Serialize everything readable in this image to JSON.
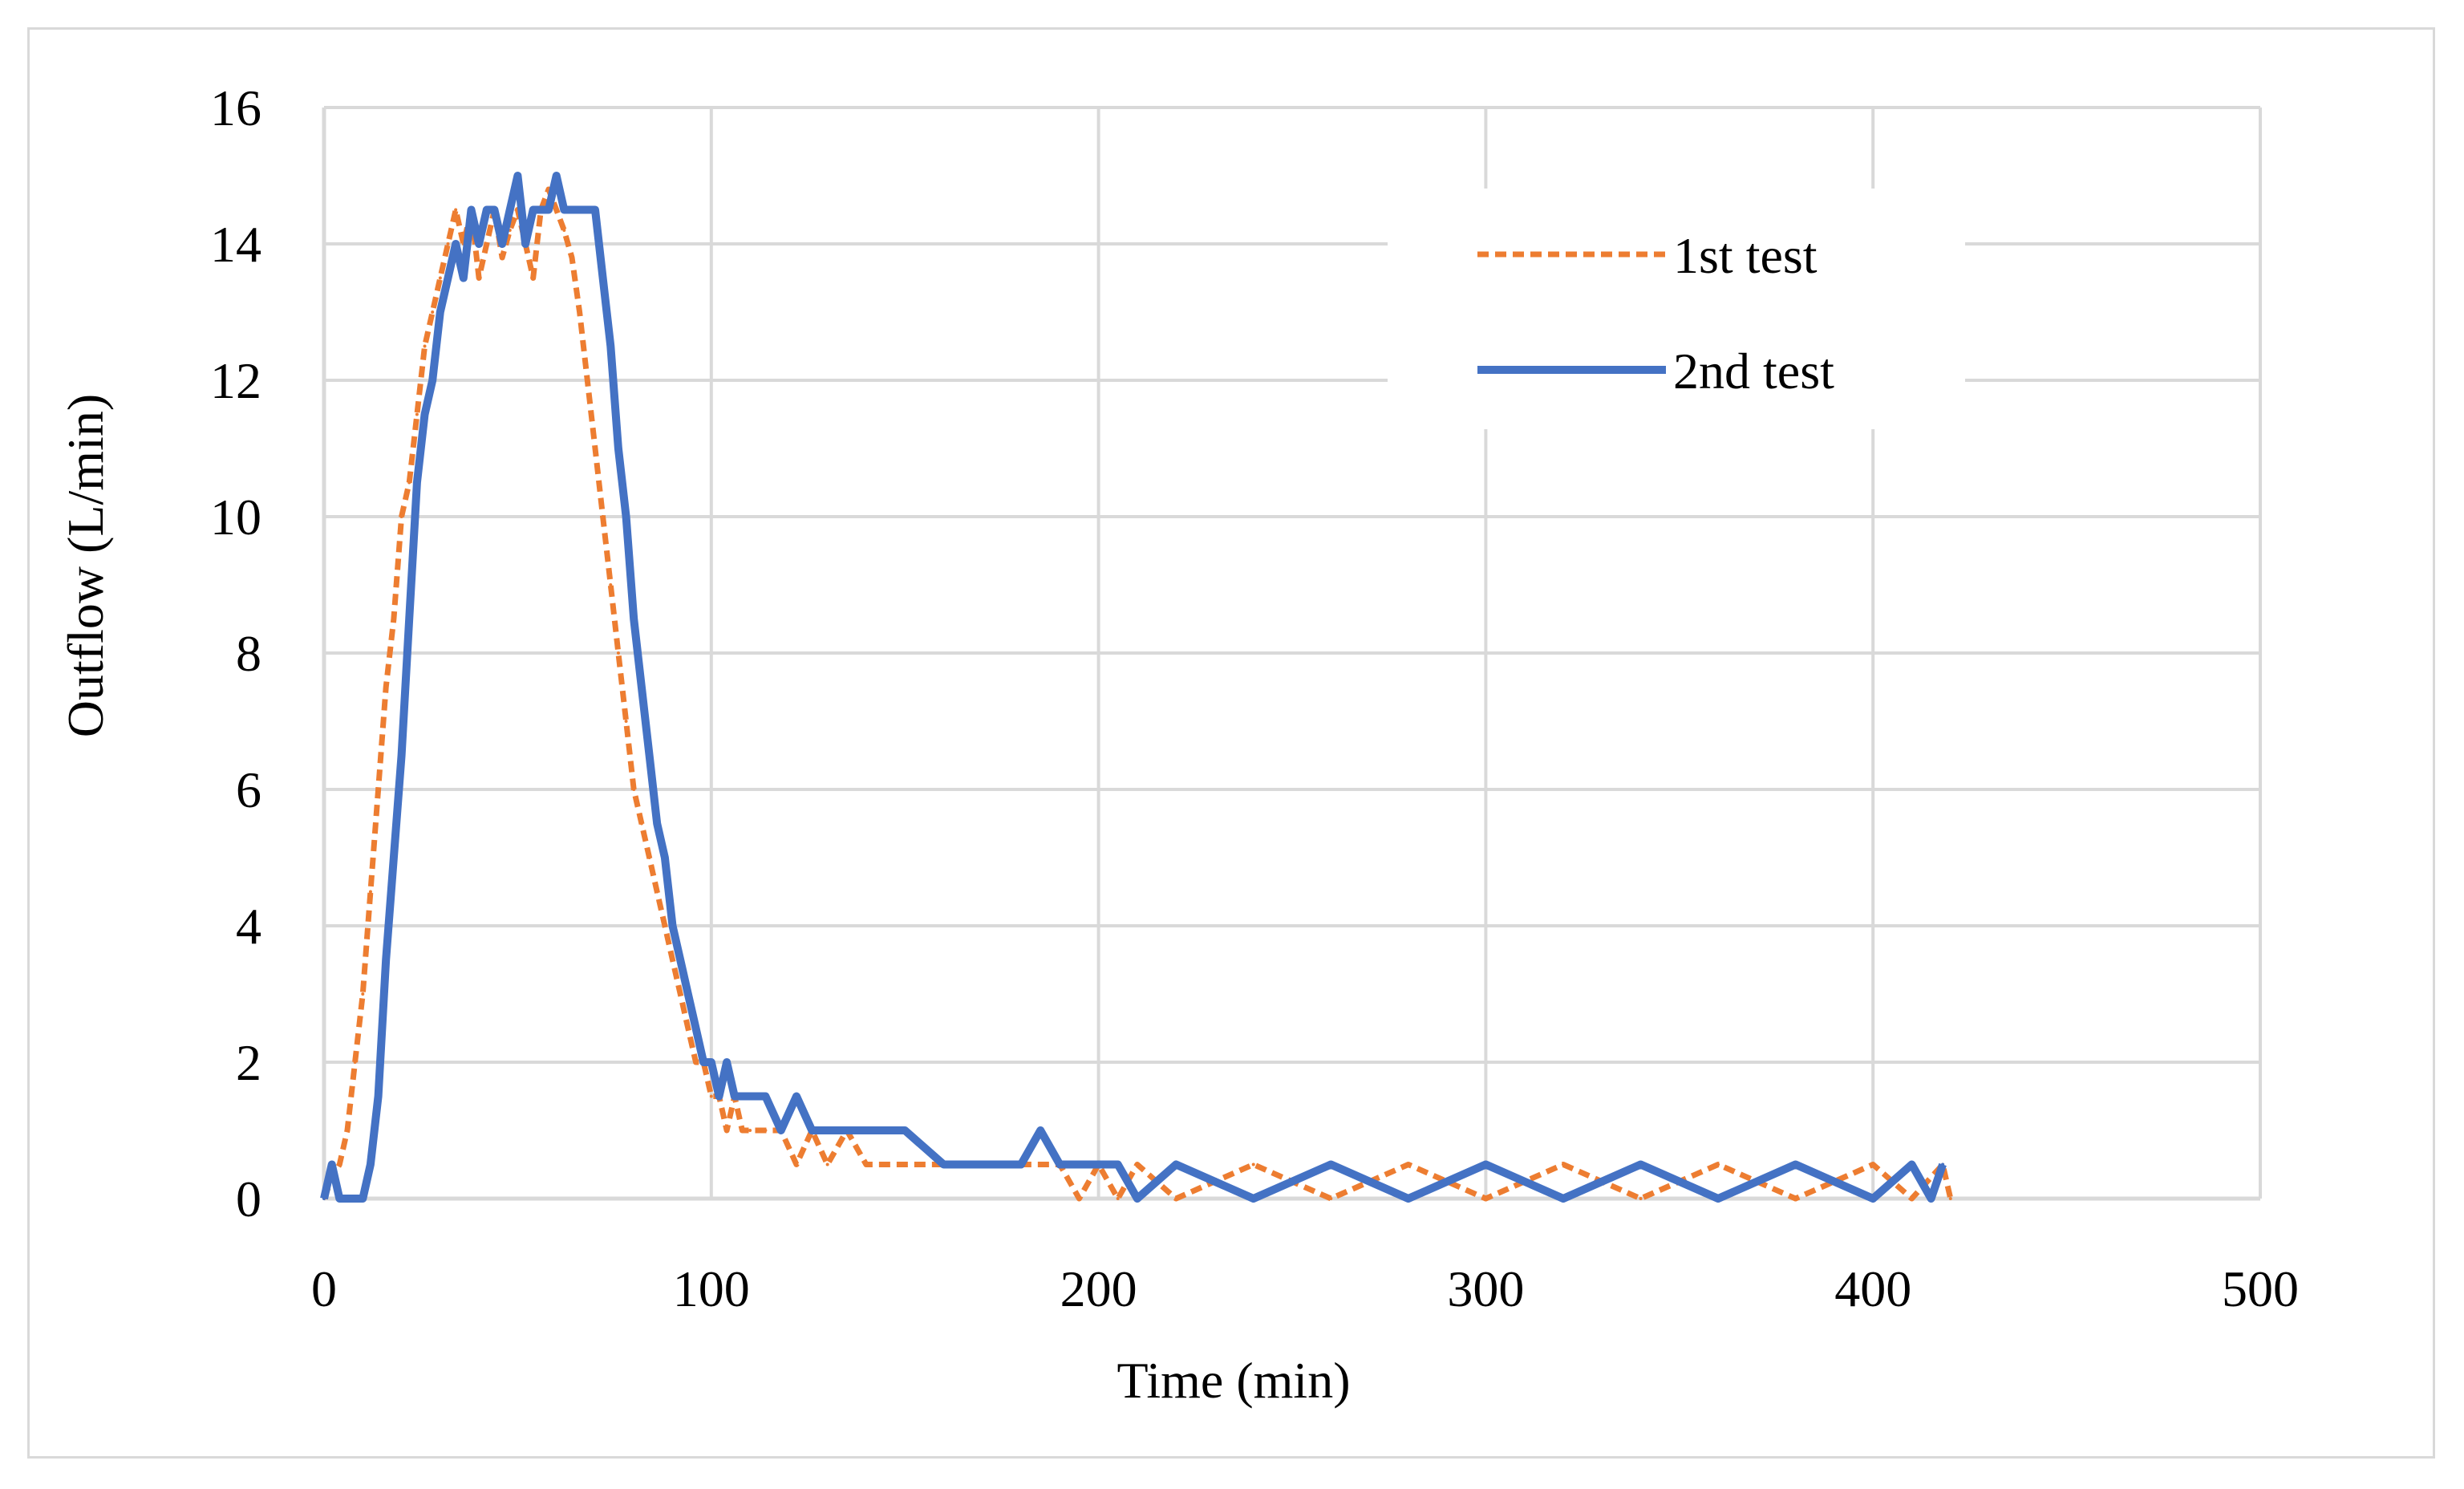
{
  "chart_data": {
    "type": "line",
    "title": "",
    "xlabel": "Time (min)",
    "ylabel": "Outflow (L/min)",
    "xlim": [
      0,
      500
    ],
    "ylim": [
      0,
      16
    ],
    "xticks": [
      0,
      100,
      200,
      300,
      400,
      500
    ],
    "yticks": [
      0,
      2,
      4,
      6,
      8,
      10,
      12,
      14,
      16
    ],
    "grid": true,
    "legend_position": "top-right",
    "series": [
      {
        "name": "1st test",
        "color": "#ED7D31",
        "style": "dashed",
        "x": [
          0,
          2,
          4,
          6,
          8,
          10,
          12,
          14,
          16,
          18,
          20,
          22,
          24,
          26,
          28,
          30,
          32,
          34,
          36,
          38,
          40,
          42,
          44,
          46,
          48,
          50,
          52,
          54,
          56,
          58,
          60,
          62,
          64,
          66,
          68,
          70,
          72,
          74,
          76,
          78,
          80,
          82,
          84,
          86,
          88,
          90,
          92,
          94,
          96,
          98,
          100,
          102,
          104,
          106,
          108,
          110,
          114,
          118,
          122,
          126,
          130,
          135,
          140,
          150,
          160,
          170,
          180,
          190,
          195,
          200,
          205,
          210,
          220,
          240,
          260,
          280,
          300,
          320,
          340,
          360,
          380,
          400,
          410,
          418,
          420
        ],
        "y": [
          0,
          0.3,
          0.5,
          1.0,
          2.0,
          3.0,
          4.5,
          6.0,
          7.5,
          8.5,
          10.0,
          10.5,
          11.5,
          12.5,
          13.0,
          13.5,
          14.0,
          14.5,
          14.0,
          14.5,
          13.5,
          14.0,
          14.5,
          13.8,
          14.2,
          14.5,
          14.0,
          13.5,
          14.5,
          14.8,
          14.5,
          14.2,
          13.8,
          13.0,
          12.0,
          11.0,
          10.0,
          9.0,
          8.0,
          7.0,
          6.0,
          5.5,
          5.0,
          4.5,
          4.0,
          3.5,
          3.0,
          2.5,
          2.0,
          2.0,
          1.5,
          1.5,
          1.0,
          1.5,
          1.0,
          1.0,
          1.0,
          1.0,
          0.5,
          1.0,
          0.5,
          1.0,
          0.5,
          0.5,
          0.5,
          0.5,
          0.5,
          0.5,
          0,
          0.5,
          0,
          0.5,
          0,
          0.5,
          0,
          0.5,
          0,
          0.5,
          0,
          0.5,
          0,
          0.5,
          0,
          0.5,
          0
        ]
      },
      {
        "name": "2nd test",
        "color": "#4472C4",
        "style": "solid",
        "x": [
          0,
          2,
          4,
          10,
          12,
          14,
          16,
          18,
          20,
          22,
          24,
          26,
          28,
          30,
          32,
          34,
          36,
          38,
          40,
          42,
          44,
          46,
          48,
          50,
          52,
          54,
          56,
          58,
          60,
          62,
          64,
          66,
          68,
          70,
          72,
          74,
          76,
          78,
          80,
          82,
          84,
          86,
          88,
          90,
          92,
          94,
          96,
          98,
          100,
          102,
          104,
          106,
          110,
          114,
          118,
          122,
          126,
          130,
          135,
          140,
          150,
          160,
          170,
          180,
          185,
          190,
          195,
          200,
          205,
          210,
          220,
          240,
          260,
          280,
          300,
          320,
          340,
          360,
          380,
          400,
          410,
          415,
          418
        ],
        "y": [
          0,
          0.5,
          0,
          0,
          0.5,
          1.5,
          3.5,
          5.0,
          6.5,
          8.5,
          10.5,
          11.5,
          12.0,
          13.0,
          13.5,
          14.0,
          13.5,
          14.5,
          14.0,
          14.5,
          14.5,
          14.0,
          14.5,
          15.0,
          14.0,
          14.5,
          14.5,
          14.5,
          15.0,
          14.5,
          14.5,
          14.5,
          14.5,
          14.5,
          13.5,
          12.5,
          11.0,
          10.0,
          8.5,
          7.5,
          6.5,
          5.5,
          5.0,
          4.0,
          3.5,
          3.0,
          2.5,
          2.0,
          2.0,
          1.5,
          2.0,
          1.5,
          1.5,
          1.5,
          1.0,
          1.5,
          1.0,
          1.0,
          1.0,
          1.0,
          1.0,
          0.5,
          0.5,
          0.5,
          1.0,
          0.5,
          0.5,
          0.5,
          0.5,
          0,
          0.5,
          0,
          0.5,
          0,
          0.5,
          0,
          0.5,
          0,
          0.5,
          0,
          0.5,
          0,
          0.5
        ]
      }
    ]
  }
}
